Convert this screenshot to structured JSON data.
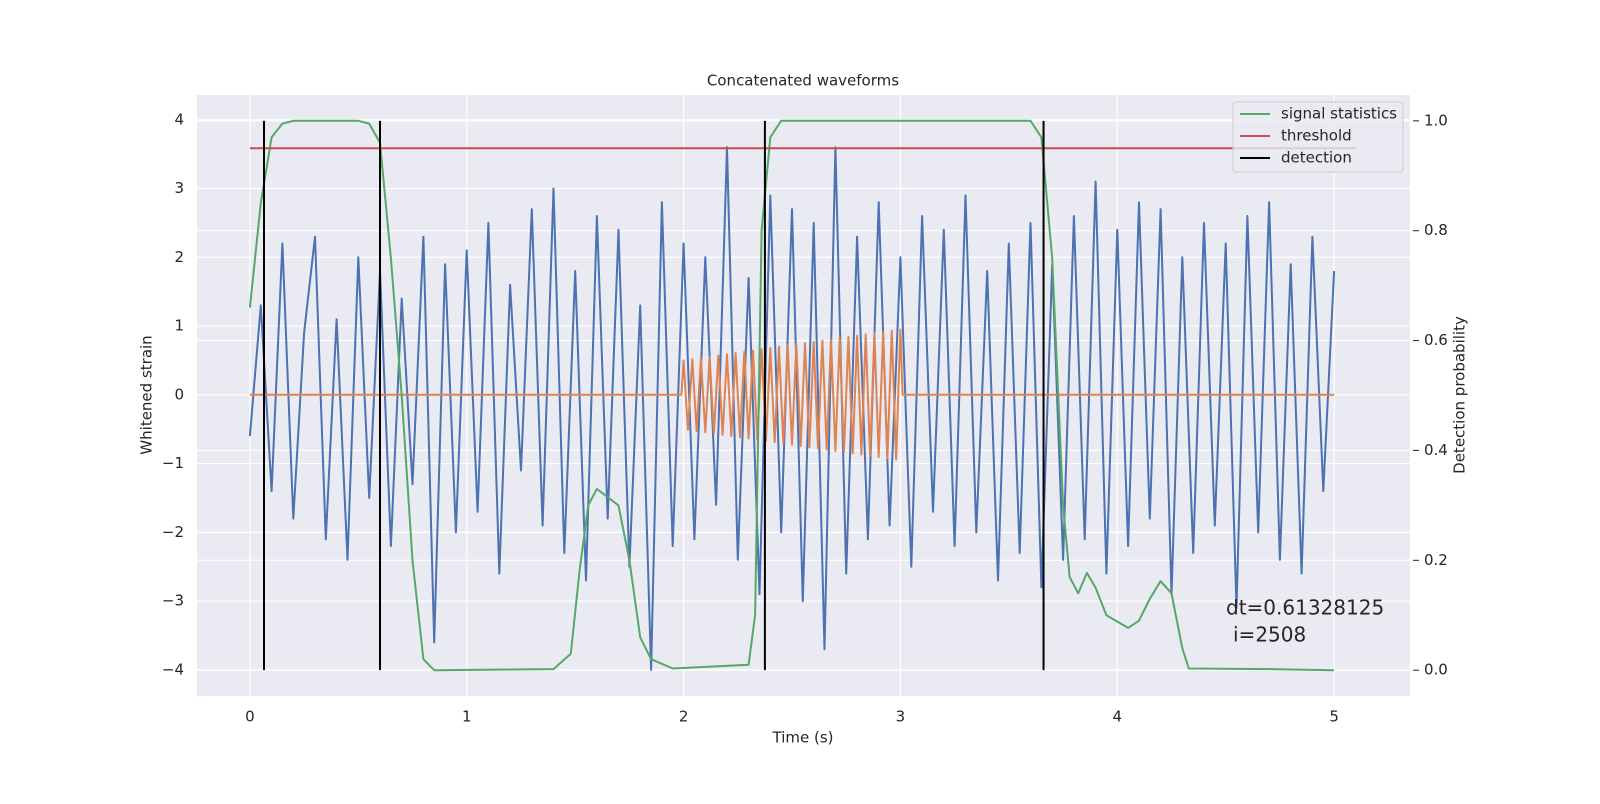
{
  "chart_data": {
    "type": "line",
    "title": "Concatenated waveforms",
    "xlabel": "Time (s)",
    "ylabel": "Whitened strain",
    "y2label": "Detection probability",
    "xlim": [
      -0.244,
      5.35
    ],
    "ylim": [
      -4.38,
      4.36
    ],
    "y2lim": [
      -0.047,
      1.047
    ],
    "xticks": [
      0,
      1,
      2,
      3,
      4,
      5
    ],
    "yticks": [
      {
        "value": -4,
        "label": "−4"
      },
      {
        "value": -3,
        "label": "−3"
      },
      {
        "value": -2,
        "label": "−2"
      },
      {
        "value": -1,
        "label": "−1"
      },
      0,
      1,
      2,
      3,
      4
    ],
    "y2ticks": [
      {
        "value": 0,
        "label": "0.0"
      },
      {
        "value": 0.2,
        "label": "0.2"
      },
      {
        "value": 0.4,
        "label": "0.4"
      },
      {
        "value": 0.6,
        "label": "0.6"
      },
      {
        "value": 0.8,
        "label": "0.8"
      },
      {
        "value": 1,
        "label": "1.0"
      }
    ],
    "grid": true,
    "legend": "upper right",
    "annotation": [
      "dt=0.61328125",
      "i=2508"
    ],
    "series": [
      {
        "color": "#4c72b0",
        "x": [
          0,
          0.05,
          0.1,
          0.15,
          0.2,
          0.25,
          0.3,
          0.35,
          0.4,
          0.45,
          0.5,
          0.55,
          0.6,
          0.65,
          0.7,
          0.75,
          0.8,
          0.85,
          0.9,
          0.95,
          1,
          1.05,
          1.1,
          1.15,
          1.2,
          1.25,
          1.3,
          1.35,
          1.4,
          1.45,
          1.5,
          1.55,
          1.6,
          1.65,
          1.7,
          1.75,
          1.8,
          1.85,
          1.9,
          1.95,
          2,
          2.05,
          2.1,
          2.15,
          2.2,
          2.25,
          2.3,
          2.35,
          2.4,
          2.45,
          2.5,
          2.55,
          2.6,
          2.65,
          2.7,
          2.75,
          2.8,
          2.85,
          2.9,
          2.95,
          3,
          3.05,
          3.1,
          3.15,
          3.2,
          3.25,
          3.3,
          3.35,
          3.4,
          3.45,
          3.5,
          3.55,
          3.6,
          3.65,
          3.7,
          3.75,
          3.8,
          3.85,
          3.9,
          3.95,
          4,
          4.05,
          4.1,
          4.15,
          4.2,
          4.25,
          4.3,
          4.35,
          4.4,
          4.45,
          4.5,
          4.55,
          4.6,
          4.65,
          4.7,
          4.75,
          4.8,
          4.85,
          4.9,
          4.95,
          5
        ],
        "values": [
          -0.6,
          1.3,
          -1.4,
          2.2,
          -1.8,
          0.9,
          2.3,
          -2.1,
          1.1,
          -2.4,
          2.0,
          -1.5,
          1.8,
          -2.2,
          1.4,
          -1.3,
          2.3,
          -3.6,
          1.9,
          -2.0,
          2.1,
          -1.7,
          2.5,
          -2.6,
          1.6,
          -1.1,
          2.7,
          -1.9,
          3.0,
          -2.3,
          1.8,
          -2.7,
          2.6,
          -1.8,
          2.4,
          -2.5,
          1.3,
          -4.0,
          2.8,
          -2.2,
          2.2,
          -2.1,
          2.0,
          -1.6,
          3.6,
          -2.4,
          1.7,
          -2.9,
          2.9,
          -2.0,
          2.7,
          -3.0,
          2.5,
          -3.7,
          3.6,
          -2.6,
          2.3,
          -2.1,
          2.8,
          -1.9,
          2.0,
          -2.5,
          2.6,
          -1.7,
          2.4,
          -2.2,
          2.9,
          -2.0,
          1.8,
          -2.7,
          2.2,
          -2.3,
          2.5,
          -2.8,
          1.9,
          -2.4,
          2.6,
          -2.1,
          3.1,
          -2.6,
          2.4,
          -2.2,
          2.8,
          -1.8,
          2.7,
          -2.9,
          2.0,
          -2.3,
          2.5,
          -1.9,
          2.2,
          -3.1,
          2.6,
          -2.0,
          2.8,
          -2.4,
          1.9,
          -2.6,
          2.3,
          -1.4,
          1.8
        ]
      },
      {
        "color": "#dd8452",
        "x": [
          0,
          1.99,
          2,
          2.02,
          2.04,
          2.06,
          2.08,
          2.1,
          2.12,
          2.14,
          2.16,
          2.18,
          2.2,
          2.22,
          2.24,
          2.26,
          2.28,
          2.3,
          2.32,
          2.34,
          2.36,
          2.38,
          2.4,
          2.42,
          2.44,
          2.46,
          2.48,
          2.5,
          2.52,
          2.54,
          2.56,
          2.58,
          2.6,
          2.62,
          2.64,
          2.66,
          2.68,
          2.7,
          2.72,
          2.74,
          2.76,
          2.78,
          2.8,
          2.82,
          2.84,
          2.86,
          2.88,
          2.9,
          2.92,
          2.94,
          2.96,
          2.98,
          3,
          3.01,
          5
        ],
        "values": [
          0,
          0,
          0.5,
          -0.509,
          0.518,
          -0.527,
          0.536,
          -0.545,
          0.554,
          -0.563,
          0.572,
          -0.581,
          0.59,
          -0.599,
          0.608,
          -0.617,
          0.626,
          -0.635,
          0.644,
          -0.653,
          0.662,
          -0.671,
          0.68,
          -0.689,
          0.698,
          -0.707,
          0.716,
          -0.725,
          0.734,
          -0.743,
          0.752,
          -0.761,
          0.77,
          -0.779,
          0.788,
          -0.797,
          0.806,
          -0.815,
          0.824,
          -0.833,
          0.842,
          -0.851,
          0.86,
          -0.869,
          0.878,
          -0.887,
          0.896,
          -0.905,
          0.914,
          -0.923,
          0.932,
          -0.941,
          0.95,
          0,
          0
        ]
      },
      {
        "name": "signal statistics",
        "color": "#55a868",
        "axis": "y2",
        "x": [
          0,
          0.05,
          0.1,
          0.15,
          0.2,
          0.5,
          0.55,
          0.6,
          0.65,
          0.7,
          0.75,
          0.8,
          0.85,
          1.4,
          1.48,
          1.52,
          1.56,
          1.6,
          1.7,
          1.75,
          1.8,
          1.85,
          1.95,
          2.3,
          2.33,
          2.36,
          2.4,
          2.45,
          3.6,
          3.65,
          3.7,
          3.75,
          3.78,
          3.82,
          3.86,
          3.9,
          3.95,
          4.05,
          4.1,
          4.15,
          4.2,
          4.25,
          4.3,
          4.33,
          4.7,
          5
        ],
        "values": [
          0.66,
          0.85,
          0.97,
          0.995,
          1,
          1,
          0.995,
          0.96,
          0.75,
          0.5,
          0.2,
          0.02,
          0,
          0.002,
          0.03,
          0.18,
          0.3,
          0.33,
          0.3,
          0.2,
          0.06,
          0.02,
          0.003,
          0.01,
          0.1,
          0.8,
          0.97,
          1,
          1,
          0.97,
          0.75,
          0.3,
          0.17,
          0.14,
          0.177,
          0.15,
          0.1,
          0.077,
          0.09,
          0.13,
          0.162,
          0.14,
          0.04,
          0.003,
          0.002,
          0
        ]
      },
      {
        "name": "threshold",
        "color": "#c44e52",
        "axis": "y2",
        "x": [
          0,
          5.1
        ],
        "values": [
          0.95,
          0.95
        ]
      },
      {
        "name": "detection",
        "color": "#000000",
        "axis": "y2",
        "style": "vlines",
        "ymin": 0,
        "ymax": 1,
        "x": [
          0.065,
          0.6,
          2.375,
          3.66
        ]
      }
    ]
  }
}
